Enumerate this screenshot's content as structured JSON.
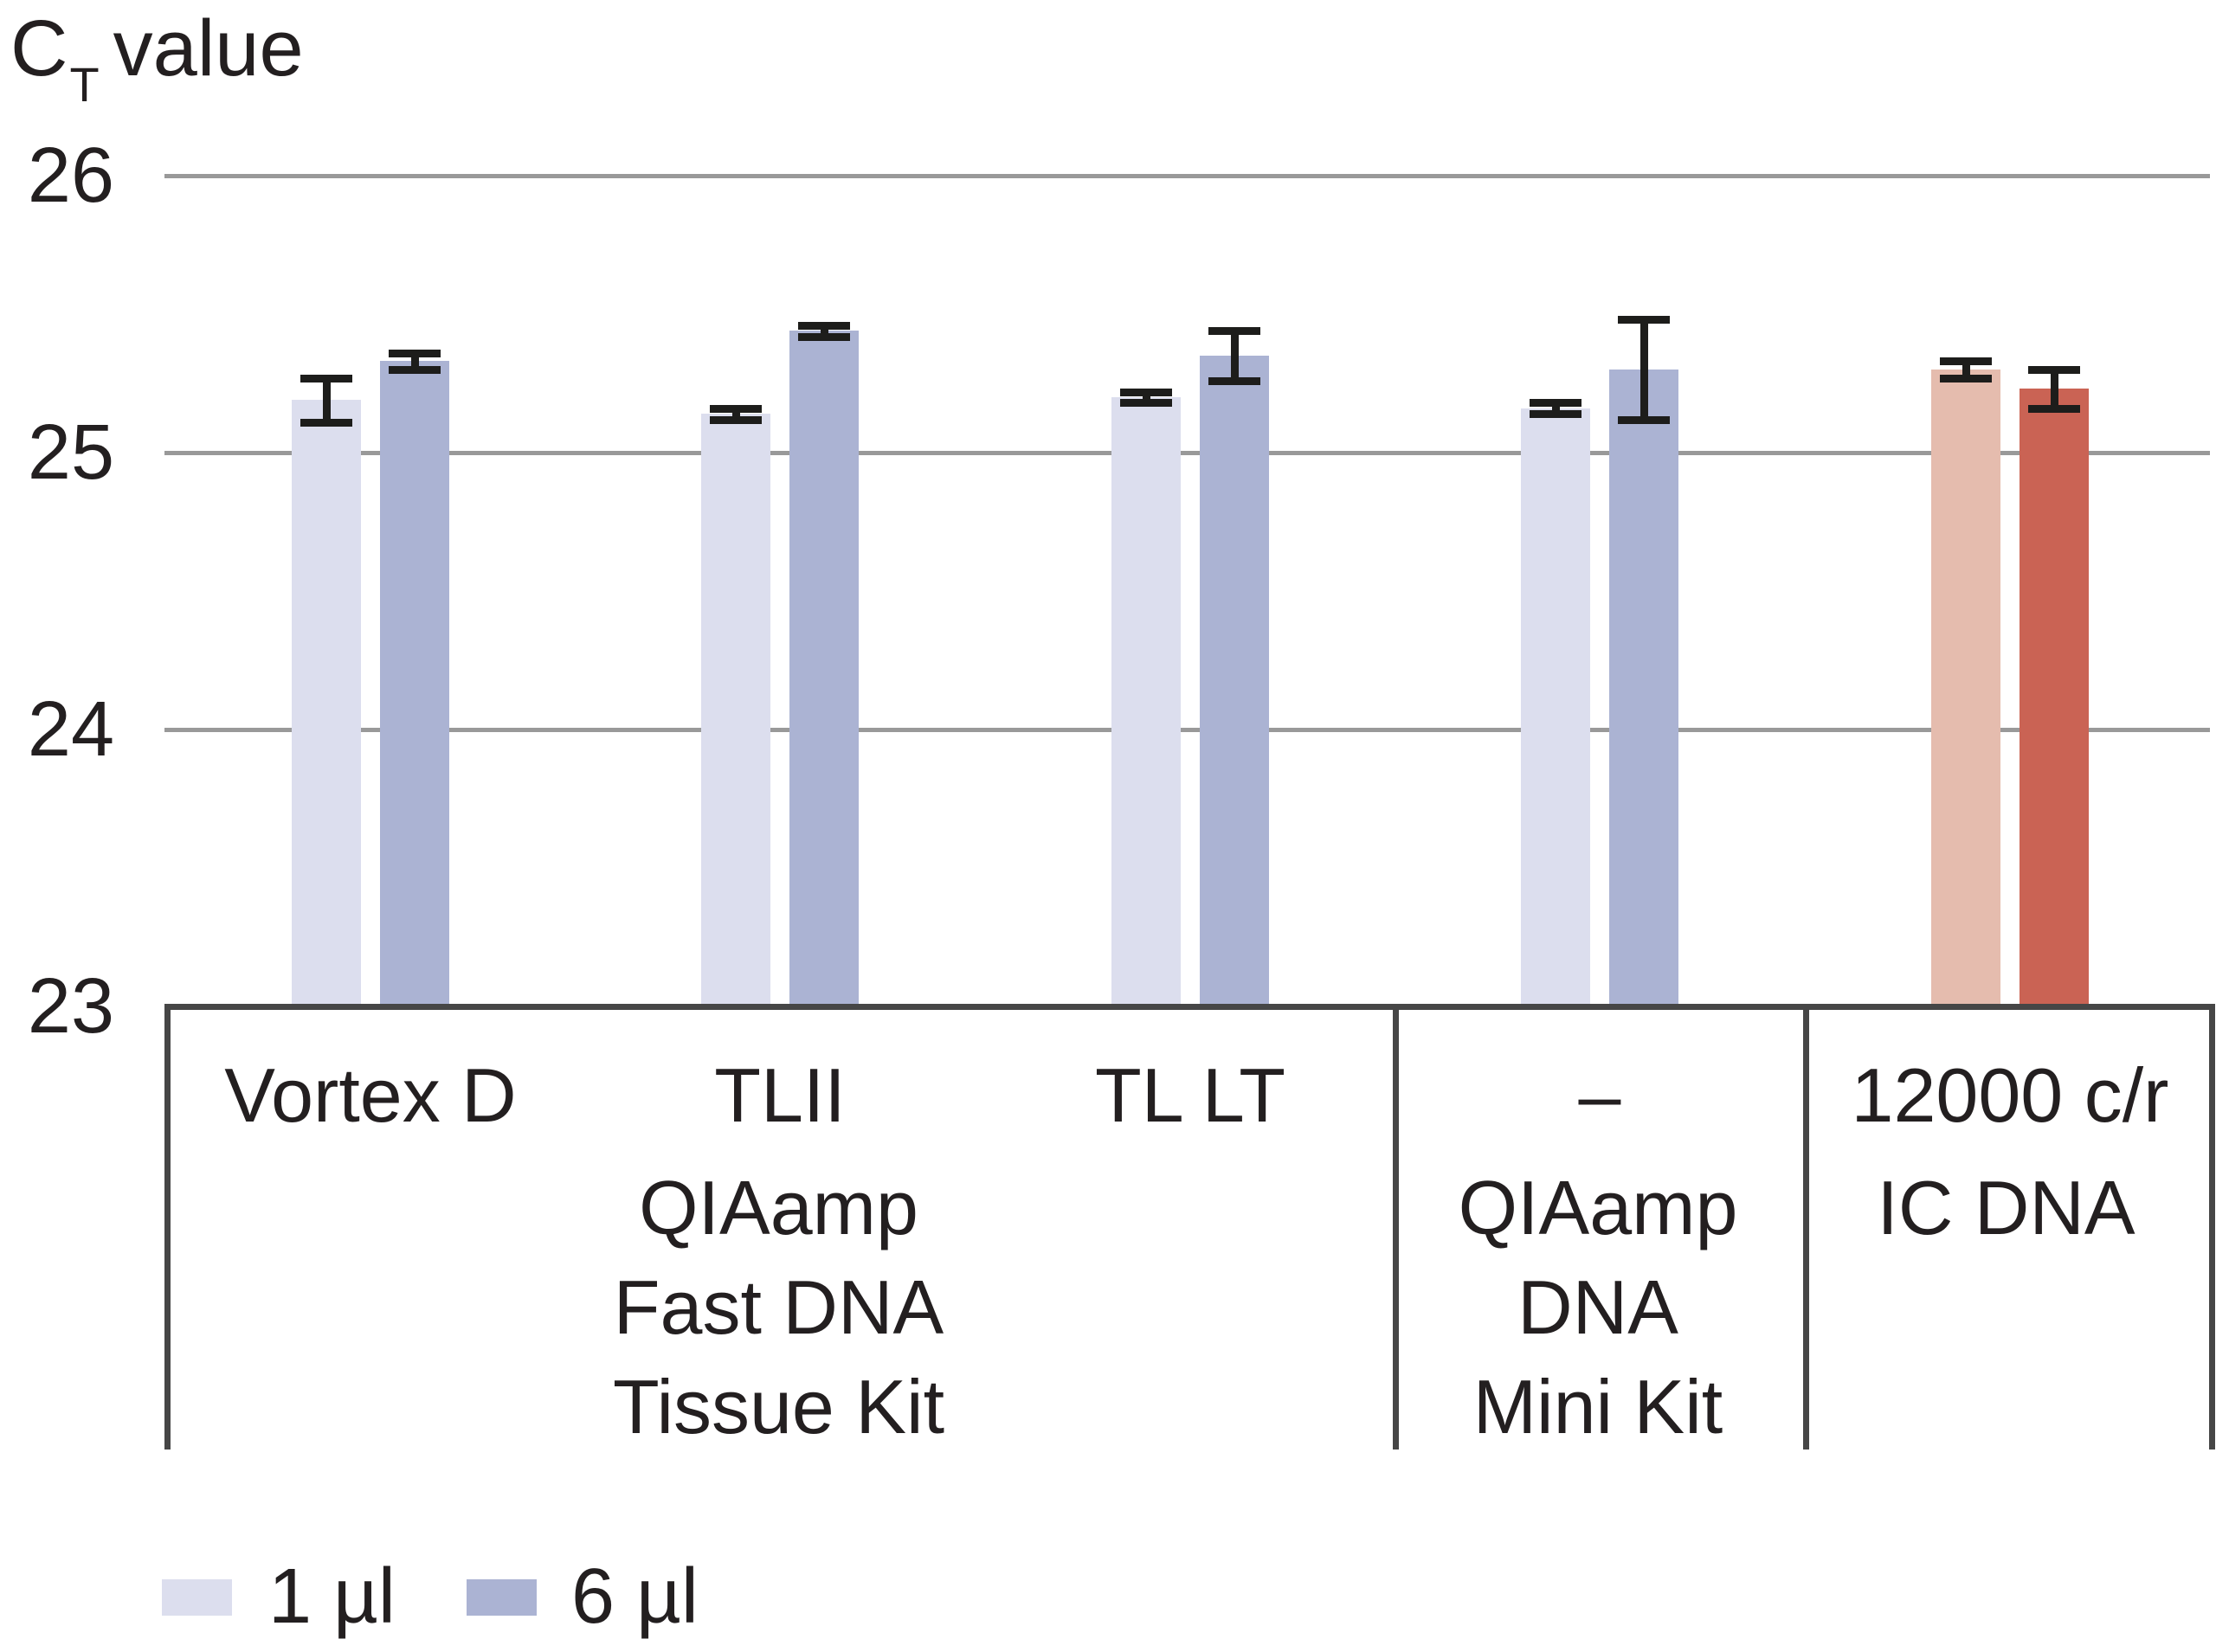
{
  "title": {
    "base": "C",
    "sub": "T",
    "rest": "value"
  },
  "chart_data": {
    "type": "bar",
    "title": "CT value",
    "ylabel": "CT value",
    "xlabel": "",
    "ylim": [
      23,
      26
    ],
    "y_ticks": [
      26,
      25,
      24,
      23
    ],
    "grid": true,
    "legend_position": "bottom-left",
    "series": [
      "1 µl",
      "6 µl"
    ],
    "groups": [
      {
        "label": "Vortex D",
        "palette": "blue",
        "values": [
          25.19,
          25.33
        ],
        "errors": [
          0.08,
          0.03
        ]
      },
      {
        "label": "TLII",
        "palette": "blue",
        "values": [
          25.14,
          25.44
        ],
        "errors": [
          0.02,
          0.02
        ]
      },
      {
        "label": "TL LT",
        "palette": "blue",
        "values": [
          25.2,
          25.35
        ],
        "errors": [
          0.02,
          0.09
        ]
      },
      {
        "label": "–",
        "palette": "blue",
        "values": [
          25.16,
          25.3
        ],
        "errors": [
          0.02,
          0.18
        ]
      },
      {
        "label": "12000 c/r",
        "palette": "red",
        "values": [
          25.3,
          25.23
        ],
        "errors": [
          0.03,
          0.07
        ]
      }
    ],
    "sections": [
      {
        "lines": [
          "QIAamp",
          "Fast DNA",
          "Tissue Kit"
        ],
        "group_count": 3
      },
      {
        "lines": [
          "QIAamp",
          "DNA",
          "Mini Kit"
        ],
        "group_count": 1
      },
      {
        "lines": [
          "IC DNA"
        ],
        "group_count": 1
      }
    ]
  },
  "legend": [
    {
      "label": "1 µl",
      "swatch": "blue-light"
    },
    {
      "label": "6 µl",
      "swatch": "blue-dark"
    }
  ],
  "colors": {
    "blue-light": "#dcdeee",
    "blue-dark": "#abb3d3",
    "red-light": "#e5bcae",
    "red-dark": "#ca6354",
    "gridline": "#999999",
    "table_border": "#464646",
    "error_bar": "#1d1d1b",
    "text": "#231f20"
  }
}
